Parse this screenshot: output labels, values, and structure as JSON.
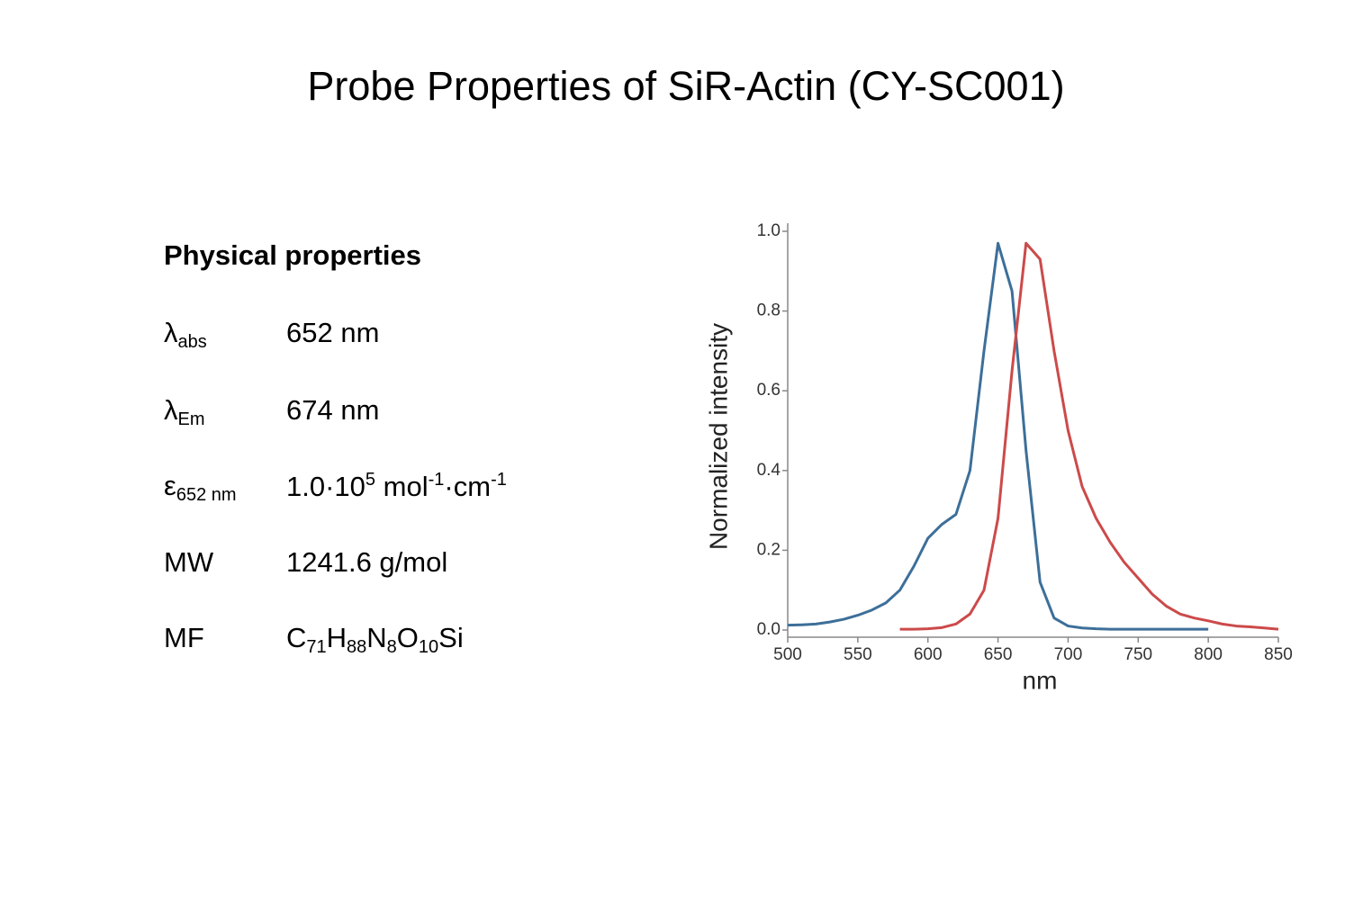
{
  "title": "Probe Properties of SiR-Actin (CY-SC001)",
  "properties": {
    "heading": "Physical properties",
    "rows": [
      {
        "label": [
          {
            "t": "λ"
          },
          {
            "sub": "abs"
          }
        ],
        "value": [
          {
            "t": "652 nm"
          }
        ]
      },
      {
        "label": [
          {
            "t": "λ"
          },
          {
            "sub": "Em"
          }
        ],
        "value": [
          {
            "t": "674 nm"
          }
        ]
      },
      {
        "label": [
          {
            "t": "ε"
          },
          {
            "sub": "652 nm"
          }
        ],
        "value": [
          {
            "t": "1.0·10"
          },
          {
            "sup": "5"
          },
          {
            "t": " mol"
          },
          {
            "sup": "-1"
          },
          {
            "t": "·cm"
          },
          {
            "sup": "-1"
          }
        ]
      },
      {
        "label": [
          {
            "t": "MW"
          }
        ],
        "value": [
          {
            "t": "1241.6 g/mol"
          }
        ]
      },
      {
        "label": [
          {
            "t": "MF"
          }
        ],
        "value": [
          {
            "t": "C"
          },
          {
            "sub": "71"
          },
          {
            "t": "H"
          },
          {
            "sub": "88"
          },
          {
            "t": "N"
          },
          {
            "sub": "8"
          },
          {
            "t": "O"
          },
          {
            "sub": "10"
          },
          {
            "t": "Si"
          }
        ]
      }
    ]
  },
  "chart_data": {
    "type": "line",
    "xlabel": "nm",
    "ylabel": "Normalized intensity",
    "x": [
      500,
      510,
      520,
      530,
      540,
      550,
      560,
      570,
      580,
      590,
      600,
      610,
      620,
      630,
      640,
      650,
      660,
      670,
      680,
      690,
      700,
      710,
      720,
      730,
      740,
      750,
      760,
      770,
      780,
      790,
      800,
      810,
      820,
      830,
      840,
      850
    ],
    "series": [
      {
        "color": "#3d6f99",
        "values": [
          0.012,
          0.013,
          0.015,
          0.02,
          0.027,
          0.037,
          0.05,
          0.068,
          0.1,
          0.16,
          0.23,
          0.265,
          0.29,
          0.4,
          0.7,
          0.97,
          0.85,
          0.45,
          0.12,
          0.03,
          0.01,
          0.005,
          0.003,
          0.002,
          0.002,
          0.002,
          0.002,
          0.002,
          0.002,
          0.002,
          0.002,
          null,
          null,
          null,
          null,
          null
        ]
      },
      {
        "color": "#cc4a4a",
        "values": [
          null,
          null,
          null,
          null,
          null,
          null,
          null,
          null,
          0.002,
          0.002,
          0.003,
          0.006,
          0.015,
          0.04,
          0.1,
          0.28,
          0.65,
          0.97,
          0.93,
          0.7,
          0.5,
          0.36,
          0.28,
          0.22,
          0.17,
          0.13,
          0.09,
          0.06,
          0.04,
          0.03,
          0.023,
          0.015,
          0.01,
          0.008,
          0.005,
          0.002
        ]
      }
    ],
    "xlim": [
      500,
      850
    ],
    "xticks": [
      500,
      550,
      600,
      650,
      700,
      750,
      800,
      850
    ],
    "ylim": [
      0,
      1
    ],
    "yticks": [
      {
        "value": 0,
        "label": "0.0"
      },
      0.2,
      0.4,
      0.6,
      0.8,
      {
        "value": 1,
        "label": "1.0"
      }
    ]
  }
}
